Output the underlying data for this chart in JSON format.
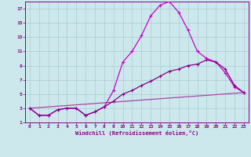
{
  "background_color": "#cce8ec",
  "grid_color": "#aaccd0",
  "line_color1": "#cc00cc",
  "line_color2": "#880088",
  "line_color3": "#aa44aa",
  "xlabel": "Windchill (Refroidissement éolien,°C)",
  "xlim": [
    -0.5,
    23.5
  ],
  "ylim": [
    1,
    18
  ],
  "yticks": [
    1,
    3,
    5,
    7,
    9,
    11,
    13,
    15,
    17
  ],
  "xticks": [
    0,
    1,
    2,
    3,
    4,
    5,
    6,
    7,
    8,
    9,
    10,
    11,
    12,
    13,
    14,
    15,
    16,
    17,
    18,
    19,
    20,
    21,
    22,
    23
  ],
  "series1_x": [
    0,
    1,
    2,
    3,
    4,
    5,
    6,
    7,
    8,
    9,
    10,
    11,
    12,
    13,
    14,
    15,
    16,
    17,
    18,
    19,
    20,
    21,
    22,
    23
  ],
  "series1_y": [
    3.0,
    2.0,
    2.0,
    2.8,
    3.0,
    3.0,
    2.0,
    2.5,
    3.2,
    5.5,
    9.5,
    11.0,
    13.2,
    16.0,
    17.5,
    18.0,
    16.5,
    14.0,
    11.0,
    10.0,
    9.5,
    8.0,
    6.0,
    5.2
  ],
  "series2_x": [
    0,
    1,
    2,
    3,
    4,
    5,
    6,
    7,
    8,
    9,
    10,
    11,
    12,
    13,
    14,
    15,
    16,
    17,
    18,
    19,
    20,
    21,
    22,
    23
  ],
  "series2_y": [
    3.0,
    2.0,
    2.0,
    2.8,
    3.0,
    3.0,
    2.0,
    2.5,
    3.2,
    4.0,
    5.0,
    5.5,
    6.2,
    6.8,
    7.5,
    8.2,
    8.5,
    9.0,
    9.2,
    9.8,
    9.5,
    8.5,
    6.2,
    5.2
  ],
  "series3_x": [
    0,
    23
  ],
  "series3_y": [
    3.0,
    5.2
  ]
}
